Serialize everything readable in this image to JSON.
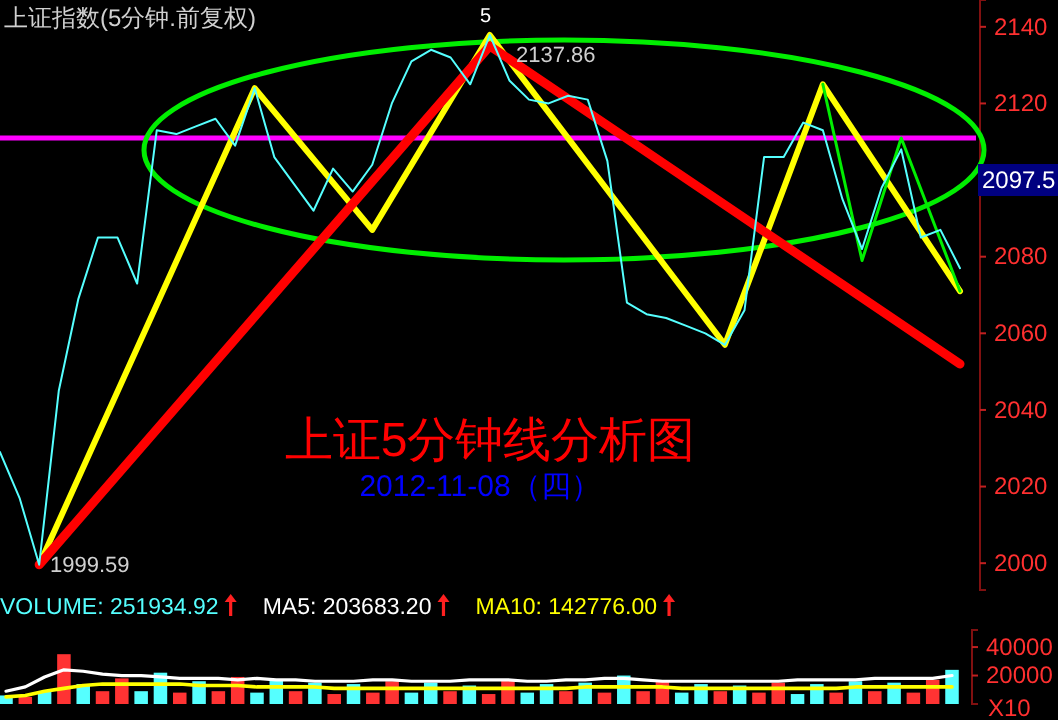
{
  "chart_data": [
    {
      "type": "line",
      "title": "上证指数(5分钟.前复权)",
      "tick_labels": "y",
      "grid": false,
      "legend": false,
      "ylim": [
        1993,
        2147
      ],
      "yticks": [
        2000,
        2020,
        2040,
        2060,
        2080,
        2120,
        2140
      ],
      "categories": [
        null,
        null,
        null,
        null,
        null,
        null,
        null,
        null,
        null,
        null,
        null,
        null,
        null,
        null,
        null,
        null,
        null,
        null,
        null,
        null,
        null,
        null,
        null,
        null,
        null,
        null,
        null,
        null,
        null,
        null,
        null,
        null,
        null,
        null,
        null,
        null,
        null,
        null,
        null,
        null,
        null,
        null,
        null,
        null,
        null,
        null,
        null,
        null,
        null,
        null
      ],
      "annotations": [
        "上证5分钟线分析图",
        "2012-11-08（四）",
        "2137.86",
        "5",
        "1999.59",
        "2097.5"
      ],
      "ref_lines": [
        {
          "axis": "y",
          "value": 2111,
          "color": "#ff00ff"
        }
      ],
      "series": [
        {
          "color": "#55ffff",
          "values": [
            2029,
            2017,
            1999.59,
            2045,
            2069,
            2085,
            2085,
            2073,
            2113,
            2112,
            2114,
            2116,
            2109,
            2124,
            2106,
            2099,
            2092,
            2103,
            2097,
            2104,
            2120,
            2131,
            2134,
            2132,
            2125,
            2137.86,
            2126,
            2121,
            2120,
            2122,
            2121,
            2105,
            2068,
            2065,
            2064,
            2062,
            2060,
            2057,
            2066,
            2106,
            2106,
            2115,
            2113,
            2095,
            2082,
            2098,
            2108,
            2085,
            2087,
            2077
          ]
        },
        {
          "color": "#ffff00",
          "values": [
            null,
            null,
            1999.59,
            null,
            null,
            null,
            null,
            null,
            null,
            null,
            null,
            null,
            null,
            2124,
            null,
            null,
            null,
            null,
            null,
            2087,
            null,
            null,
            null,
            null,
            null,
            2137.86,
            null,
            null,
            null,
            null,
            null,
            null,
            null,
            null,
            null,
            null,
            null,
            2057,
            null,
            null,
            null,
            null,
            2125,
            null,
            null,
            null,
            null,
            null,
            null,
            2071
          ]
        },
        {
          "color": "#ff0000",
          "values": [
            null,
            null,
            1999.59,
            null,
            null,
            null,
            null,
            null,
            null,
            null,
            null,
            null,
            null,
            null,
            null,
            null,
            null,
            null,
            null,
            null,
            null,
            null,
            null,
            null,
            null,
            2135,
            null,
            null,
            null,
            null,
            null,
            null,
            null,
            null,
            null,
            null,
            null,
            null,
            null,
            null,
            null,
            null,
            null,
            null,
            null,
            null,
            null,
            null,
            null,
            2052
          ]
        },
        {
          "color": "#00ee00",
          "values": [
            null,
            null,
            null,
            null,
            null,
            null,
            null,
            null,
            null,
            null,
            null,
            null,
            null,
            null,
            null,
            null,
            null,
            null,
            null,
            null,
            null,
            null,
            null,
            null,
            null,
            null,
            null,
            null,
            null,
            null,
            null,
            null,
            null,
            null,
            null,
            null,
            null,
            null,
            null,
            null,
            null,
            null,
            2125,
            null,
            2079,
            null,
            2111,
            null,
            null,
            2071
          ]
        }
      ]
    },
    {
      "type": "bar",
      "tick_labels": "y",
      "legend": "top left",
      "ylim": [
        0,
        52000
      ],
      "yticks": [
        20000,
        40000
      ],
      "annotations": [
        "X10"
      ],
      "categories": [
        null,
        null,
        null,
        null,
        null,
        null,
        null,
        null,
        null,
        null,
        null,
        null,
        null,
        null,
        null,
        null,
        null,
        null,
        null,
        null,
        null,
        null,
        null,
        null,
        null,
        null,
        null,
        null,
        null,
        null,
        null,
        null,
        null,
        null,
        null,
        null,
        null,
        null,
        null,
        null,
        null,
        null,
        null,
        null,
        null,
        null,
        null,
        null,
        null,
        null
      ],
      "series": [
        {
          "name": "VOLUME: 251934.92",
          "color": "#55ffff",
          "values": [
            6000,
            5000,
            9000,
            35000,
            14000,
            9000,
            18000,
            9000,
            22000,
            8000,
            16000,
            9000,
            19000,
            8000,
            17000,
            9000,
            15000,
            7000,
            14000,
            8000,
            16000,
            8000,
            15000,
            9000,
            13000,
            7000,
            17000,
            8000,
            14000,
            9000,
            15000,
            8000,
            20000,
            9000,
            16000,
            8000,
            14000,
            9000,
            13000,
            8000,
            15000,
            7000,
            14000,
            8000,
            16000,
            9000,
            15000,
            8000,
            17000,
            24000
          ],
          "colors": [
            "#55ffff",
            "#ff3333",
            "#55ffff",
            "#ff3333",
            "#55ffff",
            "#ff3333",
            "#ff3333",
            "#55ffff",
            "#55ffff",
            "#ff3333",
            "#55ffff",
            "#ff3333",
            "#ff3333",
            "#55ffff",
            "#55ffff",
            "#ff3333",
            "#55ffff",
            "#ff3333",
            "#55ffff",
            "#ff3333",
            "#ff3333",
            "#55ffff",
            "#55ffff",
            "#ff3333",
            "#55ffff",
            "#ff3333",
            "#ff3333",
            "#55ffff",
            "#55ffff",
            "#ff3333",
            "#55ffff",
            "#ff3333",
            "#55ffff",
            "#ff3333",
            "#ff3333",
            "#55ffff",
            "#55ffff",
            "#ff3333",
            "#55ffff",
            "#ff3333",
            "#ff3333",
            "#55ffff",
            "#55ffff",
            "#ff3333",
            "#55ffff",
            "#ff3333",
            "#55ffff",
            "#ff3333",
            "#ff3333",
            "#55ffff"
          ]
        },
        {
          "name": "MA5: 203683.20",
          "type": "line",
          "color": "#ffffff",
          "values": [
            9000,
            12000,
            19000,
            24000,
            23000,
            21000,
            20000,
            20000,
            19000,
            18000,
            18000,
            18000,
            17000,
            18000,
            17000,
            17000,
            16000,
            16000,
            16000,
            17000,
            17000,
            16000,
            16000,
            16000,
            17000,
            17000,
            17000,
            16000,
            16000,
            17000,
            17000,
            18000,
            18000,
            17000,
            16000,
            16000,
            16000,
            16000,
            16000,
            16000,
            16000,
            17000,
            17000,
            17000,
            17000,
            18000,
            18000,
            18000,
            18000,
            20000
          ]
        },
        {
          "name": "MA10: 142776.00",
          "type": "line",
          "color": "#ffff00",
          "values": [
            5000,
            6000,
            9000,
            11000,
            13000,
            14000,
            14000,
            14000,
            14000,
            14000,
            13000,
            13000,
            13000,
            12000,
            12000,
            12000,
            12000,
            11000,
            11000,
            11000,
            11000,
            11000,
            11000,
            11000,
            11000,
            11000,
            11000,
            11000,
            11000,
            11000,
            12000,
            12000,
            12000,
            12000,
            12000,
            11000,
            11000,
            11000,
            11000,
            11000,
            11000,
            11000,
            11000,
            11000,
            12000,
            12000,
            12000,
            12000,
            12000,
            12000
          ]
        }
      ]
    }
  ]
}
